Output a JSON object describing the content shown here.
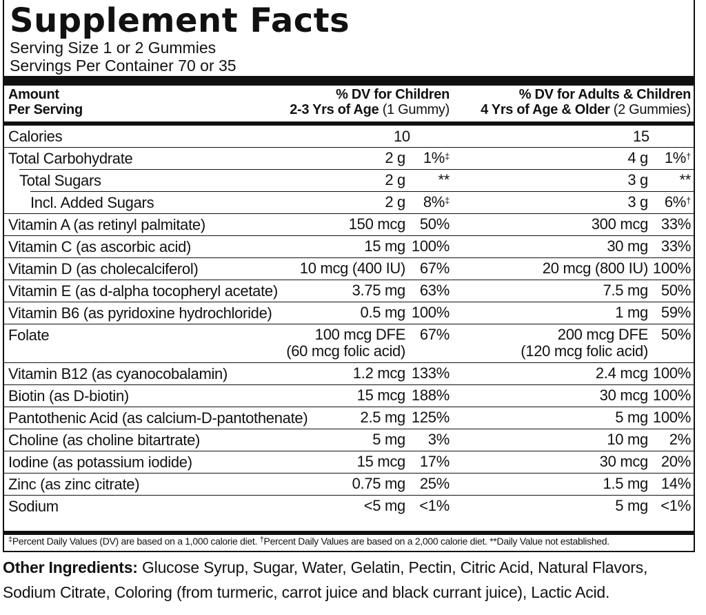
{
  "title": "Supplement Facts",
  "serving_size": "Serving Size 1 or 2 Gummies",
  "servings_per_container": "Servings Per Container 70 or 35",
  "header": {
    "amount_line1": "Amount",
    "amount_line2": "Per Serving",
    "col1_line1": "% DV for Children",
    "col1_line2_bold": "2-3 Yrs of Age",
    "col1_line2_normal": "(1 Gummy)",
    "col2_line1": "% DV for Adults & Children",
    "col2_line2_bold": "4 Yrs of Age & Older",
    "col2_line2_normal": "(2 Gummies)"
  },
  "rows": {
    "calories": {
      "label": "Calories",
      "c1": "10",
      "c2": "15"
    },
    "carb": {
      "label": "Total Carbohydrate",
      "a1": "2 g",
      "p1": "1%",
      "m1": "‡",
      "a2": "4 g",
      "p2": "1%",
      "m2": "†"
    },
    "sugars": {
      "label": "Total Sugars",
      "a1": "2 g",
      "p1": "**",
      "a2": "3 g",
      "p2": "**"
    },
    "added": {
      "label": "Incl. Added Sugars",
      "a1": "2 g",
      "p1": "8%",
      "m1": "‡",
      "a2": "3 g",
      "p2": "6%",
      "m2": "†"
    },
    "vita": {
      "label": "Vitamin A (as retinyl palmitate)",
      "a1": "150 mcg",
      "p1": "50%",
      "a2": "300 mcg",
      "p2": "33%"
    },
    "vitc": {
      "label": "Vitamin C (as ascorbic acid)",
      "a1": "15 mg",
      "p1": "100%",
      "a2": "30 mg",
      "p2": "33%"
    },
    "vitd": {
      "label": "Vitamin D (as cholecalciferol)",
      "a1": "10 mcg (400 IU)",
      "p1": "67%",
      "a2": "20 mcg (800 IU)",
      "p2": "100%"
    },
    "vite": {
      "label": "Vitamin E (as d-alpha tocopheryl acetate)",
      "a1": "3.75 mg",
      "p1": "63%",
      "a2": "7.5 mg",
      "p2": "50%"
    },
    "vitb6": {
      "label": "Vitamin B6 (as pyridoxine hydrochloride)",
      "a1": "0.5 mg",
      "p1": "100%",
      "a2": "1 mg",
      "p2": "59%"
    },
    "folate": {
      "label": "Folate",
      "a1": "100 mcg DFE",
      "a1b": "(60 mcg folic acid)",
      "p1": "67%",
      "a2": "200 mcg DFE",
      "a2b": "(120 mcg folic acid)",
      "p2": "50%"
    },
    "vitb12": {
      "label": "Vitamin B12 (as cyanocobalamin)",
      "a1": "1.2 mcg",
      "p1": "133%",
      "a2": "2.4 mcg",
      "p2": "100%"
    },
    "biotin": {
      "label": "Biotin (as D-biotin)",
      "a1": "15 mcg",
      "p1": "188%",
      "a2": "30 mcg",
      "p2": "100%"
    },
    "panto": {
      "label": "Pantothenic Acid (as calcium-D-pantothenate)",
      "a1": "2.5 mg",
      "p1": "125%",
      "a2": "5 mg",
      "p2": "100%"
    },
    "choline": {
      "label": "Choline (as choline bitartrate)",
      "a1": "5 mg",
      "p1": "3%",
      "a2": "10 mg",
      "p2": "2%"
    },
    "iodine": {
      "label": "Iodine (as potassium iodide)",
      "a1": "15 mcg",
      "p1": "17%",
      "a2": "30 mcg",
      "p2": "20%"
    },
    "zinc": {
      "label": "Zinc (as zinc citrate)",
      "a1": "0.75 mg",
      "p1": "25%",
      "a2": "1.5 mg",
      "p2": "14%"
    },
    "sodium": {
      "label": "Sodium",
      "a1": "<5 mg",
      "p1": "<1%",
      "a2": "5 mg",
      "p2": "<1%"
    }
  },
  "footnote": {
    "m1": "‡",
    "t1": "Percent Daily Values (DV) are based on a 1,000 calorie diet.",
    "m2": "†",
    "t2": "Percent Daily Values are based on a 2,000 calorie diet. **Daily Value not established."
  },
  "other_ingredients": {
    "label": "Other Ingredients:",
    "text": "Glucose Syrup, Sugar, Water, Gelatin, Pectin, Citric Acid, Natural Flavors, Sodium Citrate, Coloring (from turmeric, carrot juice and black currant juice), Lactic Acid."
  }
}
